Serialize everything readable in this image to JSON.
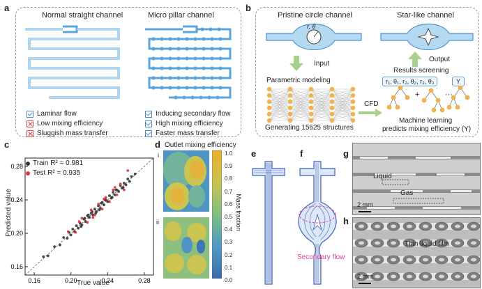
{
  "panel_labels": {
    "a": "a",
    "b": "b",
    "c": "c",
    "d": "d",
    "e": "e",
    "f": "f",
    "g": "g",
    "h": "h"
  },
  "panel_a": {
    "left_title": "Normal straight channel",
    "right_title": "Micro pillar channel",
    "left_items": [
      {
        "text": "Laminar flow",
        "mark": "check"
      },
      {
        "text": "Low mixing efficiency",
        "mark": "cross"
      },
      {
        "text": "Sluggish mass transfer",
        "mark": "cross"
      }
    ],
    "right_items": [
      {
        "text": "Inducing secondary flow",
        "mark": "check"
      },
      {
        "text": "High mixing efficiency",
        "mark": "check"
      },
      {
        "text": "Faster mass transfer",
        "mark": "check"
      }
    ]
  },
  "panel_b": {
    "pristine_title": "Pristine circle channel",
    "star_title": "Star-like channel",
    "params_label": "r, θ",
    "input_label": "Input",
    "output_label": "Output",
    "param_model": "Parametric modeling",
    "results": "Results screening",
    "vector": "r₁, θ₁, r₂, θ₂, r₃, θ₃",
    "y": "Y",
    "cfd": "CFD",
    "generating": "Generating 15625 structures",
    "ml_line1": "Machine learning",
    "ml_line2": "predicts mixing efficiency (Y)",
    "plus": "+",
    "dots": "···"
  },
  "panel_c": {
    "xlabel": "True value",
    "ylabel": "Predicted value",
    "xticks": [
      "0.16",
      "0.20",
      "0.24",
      "0.28"
    ],
    "yticks": [
      "0.16",
      "0.20",
      "0.24",
      "0.28"
    ],
    "legend_train": "Train R² = 0.981",
    "legend_test": "Test R² = 0.935"
  },
  "chart_data": {
    "type": "scatter",
    "xlabel": "True value",
    "ylabel": "Predicted value",
    "xlim": [
      0.15,
      0.29
    ],
    "ylim": [
      0.15,
      0.29
    ],
    "series": [
      {
        "name": "Train R² = 0.981",
        "color": "#333333",
        "x": [
          0.17,
          0.175,
          0.182,
          0.188,
          0.192,
          0.196,
          0.198,
          0.2,
          0.202,
          0.204,
          0.206,
          0.208,
          0.21,
          0.212,
          0.214,
          0.216,
          0.218,
          0.22,
          0.222,
          0.224,
          0.226,
          0.228,
          0.23,
          0.232,
          0.234,
          0.236,
          0.238,
          0.24,
          0.242,
          0.244,
          0.246,
          0.248,
          0.25,
          0.252,
          0.254,
          0.256,
          0.258,
          0.26,
          0.262,
          0.264,
          0.266,
          0.27,
          0.211,
          0.219,
          0.227,
          0.233,
          0.241,
          0.249,
          0.257,
          0.223,
          0.231,
          0.237,
          0.245,
          0.215
        ],
        "y": [
          0.172,
          0.173,
          0.184,
          0.186,
          0.195,
          0.194,
          0.201,
          0.198,
          0.205,
          0.202,
          0.209,
          0.206,
          0.212,
          0.21,
          0.217,
          0.214,
          0.221,
          0.219,
          0.224,
          0.222,
          0.229,
          0.226,
          0.233,
          0.23,
          0.237,
          0.234,
          0.24,
          0.238,
          0.245,
          0.242,
          0.249,
          0.246,
          0.252,
          0.25,
          0.257,
          0.254,
          0.26,
          0.258,
          0.265,
          0.262,
          0.268,
          0.271,
          0.208,
          0.222,
          0.224,
          0.236,
          0.238,
          0.252,
          0.255,
          0.226,
          0.228,
          0.24,
          0.243,
          0.218
        ]
      },
      {
        "name": "Test R² = 0.935",
        "color": "#e0303a",
        "x": [
          0.197,
          0.205,
          0.212,
          0.218,
          0.222,
          0.226,
          0.23,
          0.234,
          0.238,
          0.242,
          0.246,
          0.25,
          0.254,
          0.258,
          0.262,
          0.209,
          0.224,
          0.236,
          0.248
        ],
        "y": [
          0.202,
          0.201,
          0.218,
          0.213,
          0.228,
          0.222,
          0.235,
          0.229,
          0.243,
          0.238,
          0.252,
          0.246,
          0.259,
          0.252,
          0.275,
          0.214,
          0.219,
          0.241,
          0.255
        ]
      }
    ],
    "diagonal": true
  },
  "panel_d": {
    "title": "Outlet mixing efficiency",
    "sub_i": "i",
    "sub_ii": "ii",
    "colorbar_label": "Mass fraction",
    "colorbar_ticks": [
      "1.0",
      "0.9",
      "0.8",
      "0.7",
      "0.6",
      "0.5",
      "0.4",
      "0.3",
      "0.2",
      "0.1",
      "0.0"
    ]
  },
  "panel_f": {
    "secondary_flow": "Secondary flow"
  },
  "panel_g": {
    "liquid": "Liquid",
    "gas": "Gas",
    "scale": "2 mm"
  },
  "panel_h": {
    "film": "Thin liquid film",
    "scale": "2 mm"
  }
}
